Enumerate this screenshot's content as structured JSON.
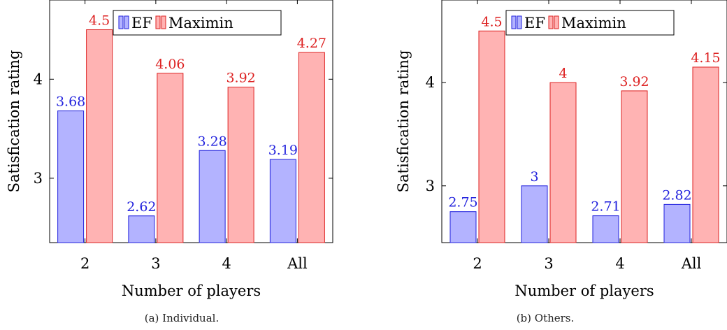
{
  "chart_data": [
    {
      "type": "bar",
      "caption": "(a) Individual.",
      "categories": [
        "2",
        "3",
        "4",
        "All"
      ],
      "series": [
        {
          "name": "EF",
          "values": [
            3.68,
            2.62,
            3.28,
            3.19
          ],
          "labels": [
            "3.68",
            "2.62",
            "3.28",
            "3.19"
          ],
          "color": "#2222dd",
          "fill": "#b3b3ff"
        },
        {
          "name": "Maximin",
          "values": [
            4.5,
            4.06,
            3.92,
            4.27
          ],
          "labels": [
            "4.5",
            "4.06",
            "3.92",
            "4.27"
          ],
          "color": "#dd2222",
          "fill": "#ffb3b3"
        }
      ],
      "xlabel": "Number of players",
      "ylabel": "Satisfication rating",
      "ylim": [
        2.35,
        4.8
      ],
      "yticks": [
        3,
        4
      ],
      "legend": "top-right",
      "grid": false
    },
    {
      "type": "bar",
      "caption": "(b) Others.",
      "categories": [
        "2",
        "3",
        "4",
        "All"
      ],
      "series": [
        {
          "name": "EF",
          "values": [
            2.75,
            3,
            2.71,
            2.82
          ],
          "labels": [
            "2.75",
            "3",
            "2.71",
            "2.82"
          ],
          "color": "#2222dd",
          "fill": "#b3b3ff"
        },
        {
          "name": "Maximin",
          "values": [
            4.5,
            4,
            3.92,
            4.15
          ],
          "labels": [
            "4.5",
            "4",
            "3.92",
            "4.15"
          ],
          "color": "#dd2222",
          "fill": "#ffb3b3"
        }
      ],
      "xlabel": "Number of players",
      "ylabel": "Satisfication rating",
      "ylim": [
        2.45,
        4.8
      ],
      "yticks": [
        3,
        4
      ],
      "legend": "top-right",
      "grid": false
    }
  ]
}
